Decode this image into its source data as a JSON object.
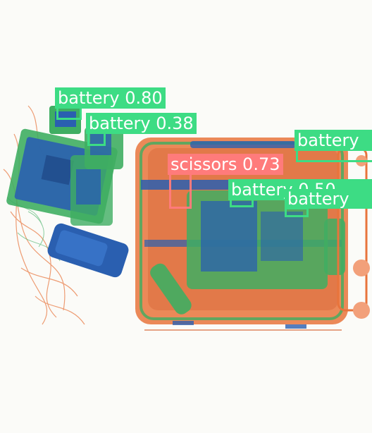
{
  "image": {
    "description_colors": {
      "background": "#fbfbf8",
      "organic": "#e8743c",
      "inorganic": "#3fae62",
      "metal": "#2a5fb0"
    }
  },
  "detections": [
    {
      "label": "battery 0.80",
      "color": "#3ddc84"
    },
    {
      "label": "battery 0.38",
      "color": "#3ddc84"
    },
    {
      "label": "battery",
      "color": "#3ddc84"
    },
    {
      "label": "scissors 0.73",
      "color": "#ff7b7b"
    },
    {
      "label": "battery 0.50",
      "color": "#3ddc84"
    },
    {
      "label": "battery",
      "color": "#3ddc84"
    }
  ]
}
